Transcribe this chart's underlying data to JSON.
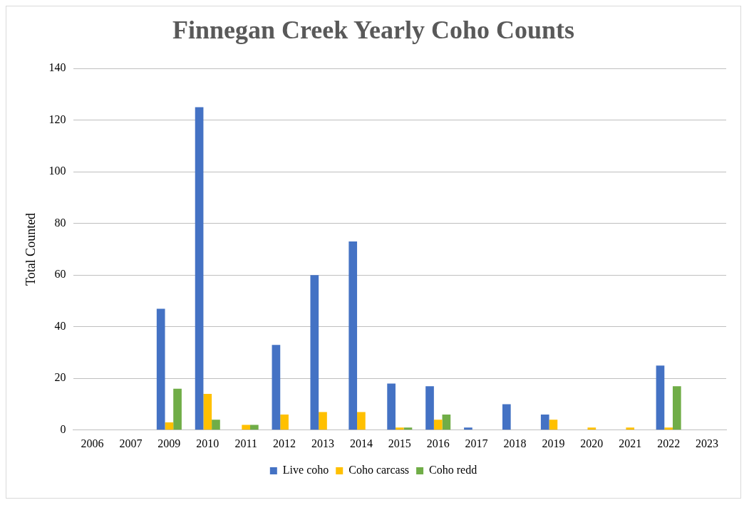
{
  "chart_data": {
    "type": "bar",
    "title": "Finnegan Creek Yearly Coho Counts",
    "ylabel": "Total Counted",
    "categories": [
      "2006",
      "2007",
      "2009",
      "2010",
      "2011",
      "2012",
      "2013",
      "2014",
      "2015",
      "2016",
      "2017",
      "2018",
      "2019",
      "2020",
      "2021",
      "2022",
      "2023"
    ],
    "series": [
      {
        "name": "Live coho",
        "color": "#4472c4",
        "values": [
          null,
          null,
          47,
          125,
          null,
          33,
          60,
          73,
          18,
          17,
          1,
          10,
          6,
          null,
          null,
          25,
          null
        ]
      },
      {
        "name": "Coho carcass",
        "color": "#ffc000",
        "values": [
          null,
          null,
          3,
          14,
          2,
          6,
          7,
          7,
          1,
          4,
          null,
          null,
          4,
          1,
          1,
          1,
          null
        ]
      },
      {
        "name": "Coho redd",
        "color": "#70ad47",
        "values": [
          null,
          null,
          16,
          4,
          2,
          null,
          null,
          null,
          1,
          6,
          null,
          null,
          null,
          null,
          null,
          17,
          null
        ]
      }
    ],
    "ylim": [
      0,
      140
    ],
    "yticks": [
      0,
      20,
      40,
      60,
      80,
      100,
      120,
      140
    ],
    "grid": "y",
    "legend": "bottom"
  }
}
